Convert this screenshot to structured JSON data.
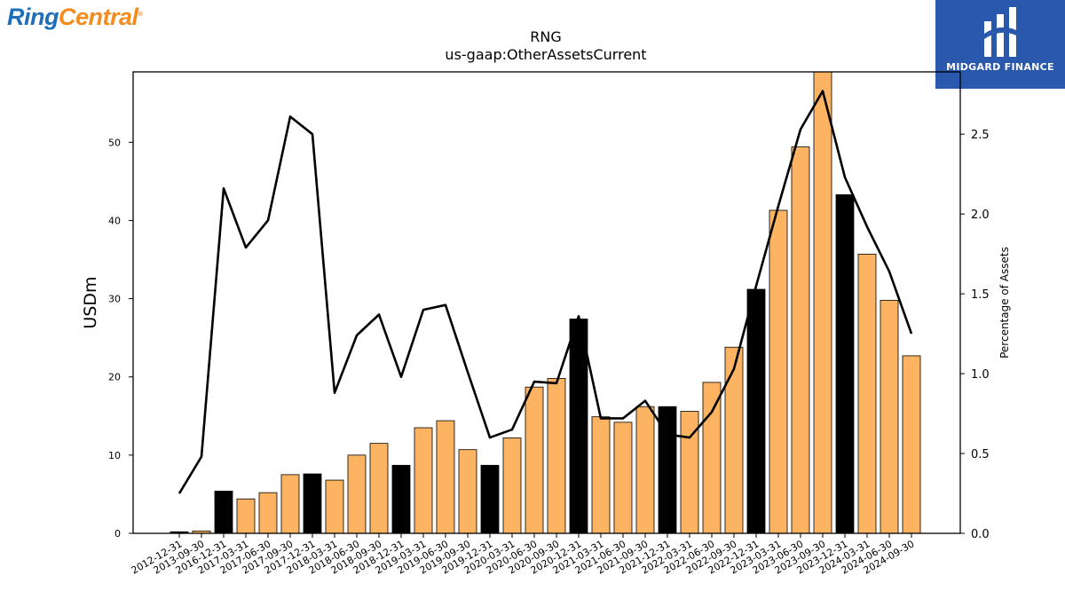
{
  "branding": {
    "left_logo_part1": "Ring",
    "left_logo_part2": "Central",
    "left_logo_mark": "®",
    "right_logo_text": "MIDGARD FINANCE",
    "left_logo_colors": [
      "#1f6fb8",
      "#f28c1e"
    ],
    "right_logo_bg": "#2a58ad"
  },
  "chart_data": {
    "type": "bar",
    "title": "RNG",
    "subtitle": "us-gaap:OtherAssetsCurrent",
    "ylabel": "USDm",
    "y2label": "Percentage of Assets",
    "ylim": [
      0,
      59
    ],
    "y2lim": [
      0,
      2.89
    ],
    "yticks": [
      0,
      10,
      20,
      30,
      40,
      50
    ],
    "y2ticks": [
      "0.0",
      "0.5",
      "1.0",
      "1.5",
      "2.0",
      "2.5"
    ],
    "categories": [
      "2012-12-31",
      "2013-09-30",
      "2016-12-31",
      "2017-03-31",
      "2017-06-30",
      "2017-09-30",
      "2017-12-31",
      "2018-03-31",
      "2018-06-30",
      "2018-09-30",
      "2018-12-31",
      "2019-03-31",
      "2019-06-30",
      "2019-09-30",
      "2019-12-31",
      "2020-03-31",
      "2020-06-30",
      "2020-09-30",
      "2020-12-31",
      "2021-03-31",
      "2021-06-30",
      "2021-09-30",
      "2021-12-31",
      "2022-03-31",
      "2022-06-30",
      "2022-09-30",
      "2022-12-31",
      "2023-03-31",
      "2023-06-30",
      "2023-09-30",
      "2023-12-31",
      "2024-03-31",
      "2024-06-30",
      "2024-09-30"
    ],
    "series": [
      {
        "kind": "bar",
        "values": [
          0.2,
          0.3,
          5.4,
          4.4,
          5.2,
          7.5,
          7.6,
          6.8,
          10.0,
          11.5,
          8.7,
          13.5,
          14.4,
          10.7,
          8.7,
          12.2,
          18.7,
          19.8,
          27.4,
          14.9,
          14.2,
          16.2,
          16.2,
          15.6,
          19.3,
          23.8,
          31.2,
          41.3,
          49.4,
          59.0,
          43.3,
          35.7,
          29.8,
          22.7
        ],
        "fiscal_year_end": [
          true,
          false,
          true,
          false,
          false,
          false,
          true,
          false,
          false,
          false,
          true,
          false,
          false,
          false,
          true,
          false,
          false,
          false,
          true,
          false,
          false,
          false,
          true,
          false,
          false,
          false,
          true,
          false,
          false,
          false,
          true,
          false,
          false,
          false
        ],
        "color": "#fdb462",
        "year_end_color": "#000000"
      },
      {
        "kind": "line",
        "axis": "right",
        "values": [
          0.25,
          0.48,
          2.16,
          1.79,
          1.96,
          2.61,
          2.5,
          0.88,
          1.24,
          1.37,
          0.98,
          1.4,
          1.43,
          1.01,
          0.6,
          0.65,
          0.95,
          0.94,
          1.36,
          0.72,
          0.72,
          0.83,
          0.62,
          0.6,
          0.76,
          1.03,
          1.55,
          2.05,
          2.53,
          2.77,
          2.23,
          1.92,
          1.64,
          1.25
        ],
        "color": "#000000"
      }
    ]
  }
}
